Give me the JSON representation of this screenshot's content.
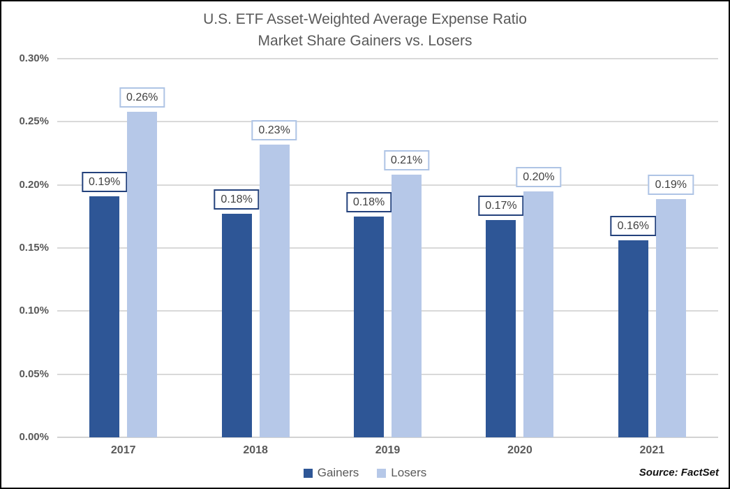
{
  "chart": {
    "title_line1": "U.S. ETF Asset-Weighted Average Expense Ratio",
    "title_line2": "Market Share Gainers vs. Losers",
    "source": "Source: FactSet"
  },
  "chart_data": {
    "type": "bar",
    "title": "U.S. ETF Asset-Weighted Average Expense Ratio Market Share Gainers vs. Losers",
    "categories": [
      "2017",
      "2018",
      "2019",
      "2020",
      "2021"
    ],
    "series": [
      {
        "name": "Gainers",
        "values": [
          0.191,
          0.177,
          0.175,
          0.172,
          0.156
        ],
        "labels": [
          "0.19%",
          "0.18%",
          "0.18%",
          "0.17%",
          "0.16%"
        ],
        "color": "#2E5696",
        "label_border_color": "#24427C"
      },
      {
        "name": "Losers",
        "values": [
          0.258,
          0.232,
          0.208,
          0.195,
          0.189
        ],
        "labels": [
          "0.26%",
          "0.23%",
          "0.21%",
          "0.20%",
          "0.19%"
        ],
        "color": "#B6C8E8",
        "label_border_color": "#AEC4E5"
      }
    ],
    "y_axis": {
      "ticks": [
        "0.30%",
        "0.25%",
        "0.20%",
        "0.15%",
        "0.10%",
        "0.05%",
        "0.00%"
      ],
      "min": 0.0,
      "max": 0.3,
      "unit": "%"
    },
    "grid": "horizontal",
    "legend_position": "bottom-center",
    "data_label_text_color": "#404040",
    "axis_text_color": "#595959",
    "gridline_color": "#D9D9D9"
  }
}
